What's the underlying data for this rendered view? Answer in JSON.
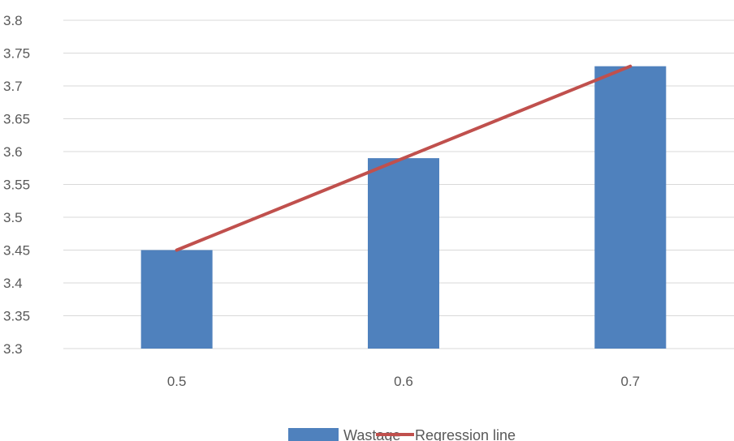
{
  "chart_data": {
    "type": "bar",
    "categories": [
      "0.5",
      "0.6",
      "0.7"
    ],
    "series": [
      {
        "name": "Wastage",
        "type": "bar",
        "values": [
          3.45,
          3.59,
          3.73
        ],
        "color": "#4F81BD"
      },
      {
        "name": "Regression line",
        "type": "line",
        "values": [
          3.45,
          3.59,
          3.73
        ],
        "color": "#C0504D"
      }
    ],
    "ylim": [
      3.3,
      3.8
    ],
    "yticks": [
      "3.3",
      "3.35",
      "3.4",
      "3.45",
      "3.5",
      "3.55",
      "3.6",
      "3.65",
      "3.7",
      "3.75",
      "3.8"
    ],
    "grid": true,
    "legend_position": "bottom"
  }
}
